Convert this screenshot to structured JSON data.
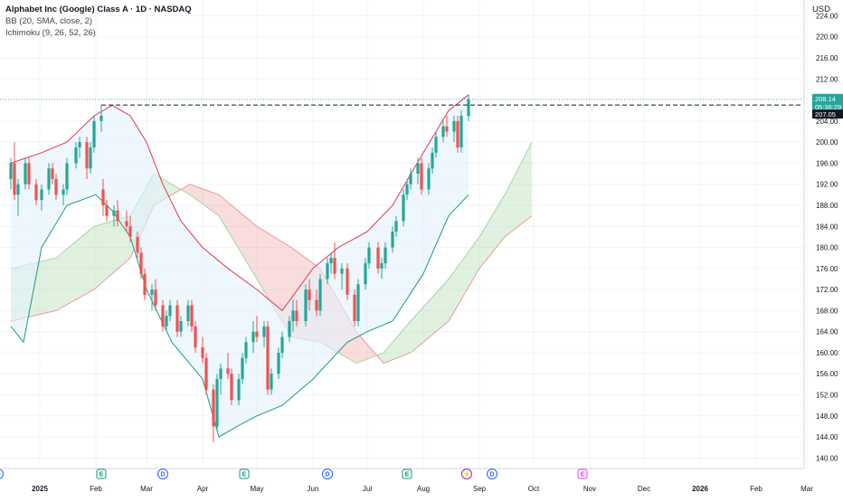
{
  "header": {
    "symbol_title": "Alphabet Inc (Google) Class A · 1D · NASDAQ",
    "indicator_bb": "BB (20, SMA, close, 2)",
    "indicator_ichimoku": "Ichimoku (9, 26, 52, 26)",
    "currency": "USD"
  },
  "colors": {
    "up": "#26a69a",
    "down": "#ef5350",
    "bb_upper": "#e0374f",
    "bb_lower": "#1f9b7e",
    "bb_fill": "#e3f2fd",
    "cloud_bull": "#a5d6a7",
    "cloud_bear": "#ef9a9a",
    "dividend": "#2962ff",
    "earnings": "#089981",
    "earnings_future": "#e040fb",
    "split": "#9c27b0"
  },
  "chart_data": {
    "type": "candlestick",
    "ylim": [
      138,
      227
    ],
    "y_ticks": [
      140,
      144,
      148,
      152,
      156,
      160,
      164,
      168,
      172,
      176,
      180,
      184,
      188,
      192,
      196,
      200,
      204,
      208,
      212,
      216,
      220,
      224
    ],
    "x_labels": [
      {
        "label": "2025",
        "date": "2025-01-01",
        "bold": true
      },
      {
        "label": "Feb",
        "date": "2025-02-01"
      },
      {
        "label": "Mar",
        "date": "2025-03-01"
      },
      {
        "label": "Apr",
        "date": "2025-04-01"
      },
      {
        "label": "May",
        "date": "2025-05-01"
      },
      {
        "label": "Jun",
        "date": "2025-06-01"
      },
      {
        "label": "Jul",
        "date": "2025-07-01"
      },
      {
        "label": "Aug",
        "date": "2025-08-01"
      },
      {
        "label": "Sep",
        "date": "2025-09-01"
      },
      {
        "label": "Oct",
        "date": "2025-10-01"
      },
      {
        "label": "Nov",
        "date": "2025-11-01"
      },
      {
        "label": "Dec",
        "date": "2025-12-01"
      },
      {
        "label": "2026",
        "date": "2026-01-01",
        "bold": true
      },
      {
        "label": "Feb",
        "date": "2026-02-01"
      },
      {
        "label": "Mar",
        "date": "2026-03-01"
      }
    ],
    "last_price": 208.14,
    "countdown": "05:36:29",
    "line_price": 207.05,
    "resistance_level": 207.05,
    "resistance_from": "2025-02-04",
    "candles": [
      {
        "date": "2024-12-16",
        "o": 193,
        "h": 197,
        "l": 191,
        "c": 196
      },
      {
        "date": "2024-12-18",
        "o": 196,
        "h": 200,
        "l": 189,
        "c": 190
      },
      {
        "date": "2024-12-20",
        "o": 190,
        "h": 193,
        "l": 186,
        "c": 192
      },
      {
        "date": "2024-12-24",
        "o": 192,
        "h": 197,
        "l": 191,
        "c": 196
      },
      {
        "date": "2024-12-26",
        "o": 196,
        "h": 197,
        "l": 191,
        "c": 192
      },
      {
        "date": "2024-12-30",
        "o": 192,
        "h": 193,
        "l": 188,
        "c": 189
      },
      {
        "date": "2025-01-02",
        "o": 189,
        "h": 192,
        "l": 187,
        "c": 191
      },
      {
        "date": "2025-01-06",
        "o": 191,
        "h": 196,
        "l": 190,
        "c": 195
      },
      {
        "date": "2025-01-08",
        "o": 195,
        "h": 196,
        "l": 192,
        "c": 193
      },
      {
        "date": "2025-01-10",
        "o": 193,
        "h": 194,
        "l": 189,
        "c": 190
      },
      {
        "date": "2025-01-14",
        "o": 190,
        "h": 192,
        "l": 188,
        "c": 191
      },
      {
        "date": "2025-01-16",
        "o": 191,
        "h": 197,
        "l": 190,
        "c": 196
      },
      {
        "date": "2025-01-21",
        "o": 196,
        "h": 200,
        "l": 195,
        "c": 199
      },
      {
        "date": "2025-01-23",
        "o": 199,
        "h": 201,
        "l": 197,
        "c": 200
      },
      {
        "date": "2025-01-27",
        "o": 200,
        "h": 201,
        "l": 193,
        "c": 195
      },
      {
        "date": "2025-01-29",
        "o": 195,
        "h": 200,
        "l": 194,
        "c": 199
      },
      {
        "date": "2025-01-31",
        "o": 199,
        "h": 205,
        "l": 198,
        "c": 204
      },
      {
        "date": "2025-02-04",
        "o": 204,
        "h": 207,
        "l": 202,
        "c": 205
      },
      {
        "date": "2025-02-05",
        "o": 191,
        "h": 193,
        "l": 186,
        "c": 188
      },
      {
        "date": "2025-02-07",
        "o": 188,
        "h": 189,
        "l": 185,
        "c": 186
      },
      {
        "date": "2025-02-11",
        "o": 186,
        "h": 188,
        "l": 184,
        "c": 187
      },
      {
        "date": "2025-02-13",
        "o": 187,
        "h": 189,
        "l": 184,
        "c": 185
      },
      {
        "date": "2025-02-18",
        "o": 185,
        "h": 187,
        "l": 183,
        "c": 184
      },
      {
        "date": "2025-02-20",
        "o": 184,
        "h": 186,
        "l": 181,
        "c": 182
      },
      {
        "date": "2025-02-24",
        "o": 182,
        "h": 183,
        "l": 178,
        "c": 179
      },
      {
        "date": "2025-02-26",
        "o": 179,
        "h": 180,
        "l": 174,
        "c": 175
      },
      {
        "date": "2025-02-28",
        "o": 175,
        "h": 176,
        "l": 170,
        "c": 171
      },
      {
        "date": "2025-03-04",
        "o": 171,
        "h": 173,
        "l": 168,
        "c": 172
      },
      {
        "date": "2025-03-06",
        "o": 172,
        "h": 174,
        "l": 168,
        "c": 169
      },
      {
        "date": "2025-03-10",
        "o": 169,
        "h": 170,
        "l": 164,
        "c": 165
      },
      {
        "date": "2025-03-12",
        "o": 165,
        "h": 168,
        "l": 164,
        "c": 167
      },
      {
        "date": "2025-03-14",
        "o": 167,
        "h": 170,
        "l": 166,
        "c": 169
      },
      {
        "date": "2025-03-18",
        "o": 169,
        "h": 170,
        "l": 163,
        "c": 164
      },
      {
        "date": "2025-03-20",
        "o": 164,
        "h": 167,
        "l": 163,
        "c": 166
      },
      {
        "date": "2025-03-24",
        "o": 166,
        "h": 170,
        "l": 165,
        "c": 169
      },
      {
        "date": "2025-03-26",
        "o": 169,
        "h": 170,
        "l": 164,
        "c": 165
      },
      {
        "date": "2025-03-28",
        "o": 165,
        "h": 166,
        "l": 160,
        "c": 161
      },
      {
        "date": "2025-04-01",
        "o": 161,
        "h": 163,
        "l": 158,
        "c": 159
      },
      {
        "date": "2025-04-03",
        "o": 159,
        "h": 160,
        "l": 152,
        "c": 153
      },
      {
        "date": "2025-04-07",
        "o": 153,
        "h": 154,
        "l": 143,
        "c": 146
      },
      {
        "date": "2025-04-09",
        "o": 146,
        "h": 156,
        "l": 145,
        "c": 155
      },
      {
        "date": "2025-04-11",
        "o": 155,
        "h": 158,
        "l": 152,
        "c": 157
      },
      {
        "date": "2025-04-15",
        "o": 157,
        "h": 160,
        "l": 155,
        "c": 156
      },
      {
        "date": "2025-04-17",
        "o": 156,
        "h": 157,
        "l": 150,
        "c": 151
      },
      {
        "date": "2025-04-21",
        "o": 151,
        "h": 156,
        "l": 150,
        "c": 155
      },
      {
        "date": "2025-04-23",
        "o": 155,
        "h": 160,
        "l": 154,
        "c": 159
      },
      {
        "date": "2025-04-25",
        "o": 159,
        "h": 163,
        "l": 158,
        "c": 162
      },
      {
        "date": "2025-04-29",
        "o": 162,
        "h": 166,
        "l": 160,
        "c": 164
      },
      {
        "date": "2025-05-01",
        "o": 164,
        "h": 167,
        "l": 162,
        "c": 163
      },
      {
        "date": "2025-05-05",
        "o": 163,
        "h": 166,
        "l": 161,
        "c": 165
      },
      {
        "date": "2025-05-07",
        "o": 165,
        "h": 166,
        "l": 152,
        "c": 153
      },
      {
        "date": "2025-05-09",
        "o": 153,
        "h": 157,
        "l": 152,
        "c": 156
      },
      {
        "date": "2025-05-13",
        "o": 156,
        "h": 161,
        "l": 155,
        "c": 160
      },
      {
        "date": "2025-05-15",
        "o": 160,
        "h": 164,
        "l": 159,
        "c": 163
      },
      {
        "date": "2025-05-19",
        "o": 163,
        "h": 167,
        "l": 162,
        "c": 166
      },
      {
        "date": "2025-05-21",
        "o": 166,
        "h": 170,
        "l": 164,
        "c": 168
      },
      {
        "date": "2025-05-23",
        "o": 168,
        "h": 170,
        "l": 165,
        "c": 166
      },
      {
        "date": "2025-05-28",
        "o": 166,
        "h": 173,
        "l": 165,
        "c": 172
      },
      {
        "date": "2025-05-30",
        "o": 172,
        "h": 174,
        "l": 168,
        "c": 170
      },
      {
        "date": "2025-06-03",
        "o": 170,
        "h": 172,
        "l": 167,
        "c": 168
      },
      {
        "date": "2025-06-05",
        "o": 168,
        "h": 175,
        "l": 167,
        "c": 174
      },
      {
        "date": "2025-06-09",
        "o": 174,
        "h": 178,
        "l": 173,
        "c": 177
      },
      {
        "date": "2025-06-11",
        "o": 177,
        "h": 179,
        "l": 175,
        "c": 178
      },
      {
        "date": "2025-06-13",
        "o": 178,
        "h": 181,
        "l": 174,
        "c": 175
      },
      {
        "date": "2025-06-17",
        "o": 175,
        "h": 177,
        "l": 172,
        "c": 176
      },
      {
        "date": "2025-06-20",
        "o": 176,
        "h": 177,
        "l": 170,
        "c": 171
      },
      {
        "date": "2025-06-24",
        "o": 171,
        "h": 172,
        "l": 165,
        "c": 166
      },
      {
        "date": "2025-06-26",
        "o": 166,
        "h": 174,
        "l": 165,
        "c": 173
      },
      {
        "date": "2025-06-30",
        "o": 173,
        "h": 178,
        "l": 172,
        "c": 177
      },
      {
        "date": "2025-07-02",
        "o": 177,
        "h": 181,
        "l": 176,
        "c": 180
      },
      {
        "date": "2025-07-07",
        "o": 180,
        "h": 181,
        "l": 175,
        "c": 176
      },
      {
        "date": "2025-07-09",
        "o": 176,
        "h": 178,
        "l": 174,
        "c": 177
      },
      {
        "date": "2025-07-11",
        "o": 177,
        "h": 181,
        "l": 176,
        "c": 180
      },
      {
        "date": "2025-07-15",
        "o": 180,
        "h": 184,
        "l": 179,
        "c": 183
      },
      {
        "date": "2025-07-17",
        "o": 183,
        "h": 186,
        "l": 182,
        "c": 185
      },
      {
        "date": "2025-07-21",
        "o": 185,
        "h": 191,
        "l": 184,
        "c": 190
      },
      {
        "date": "2025-07-23",
        "o": 190,
        "h": 193,
        "l": 189,
        "c": 192
      },
      {
        "date": "2025-07-25",
        "o": 192,
        "h": 195,
        "l": 191,
        "c": 194
      },
      {
        "date": "2025-07-29",
        "o": 194,
        "h": 197,
        "l": 192,
        "c": 196
      },
      {
        "date": "2025-07-31",
        "o": 196,
        "h": 197,
        "l": 190,
        "c": 191
      },
      {
        "date": "2025-08-04",
        "o": 191,
        "h": 196,
        "l": 190,
        "c": 195
      },
      {
        "date": "2025-08-06",
        "o": 195,
        "h": 199,
        "l": 194,
        "c": 198
      },
      {
        "date": "2025-08-08",
        "o": 198,
        "h": 202,
        "l": 197,
        "c": 201
      },
      {
        "date": "2025-08-12",
        "o": 201,
        "h": 204,
        "l": 200,
        "c": 203
      },
      {
        "date": "2025-08-14",
        "o": 203,
        "h": 205,
        "l": 201,
        "c": 202
      },
      {
        "date": "2025-08-18",
        "o": 202,
        "h": 205,
        "l": 200,
        "c": 204
      },
      {
        "date": "2025-08-20",
        "o": 204,
        "h": 205,
        "l": 198,
        "c": 199
      },
      {
        "date": "2025-08-22",
        "o": 199,
        "h": 206,
        "l": 198,
        "c": 205
      },
      {
        "date": "2025-08-26",
        "o": 205,
        "h": 209,
        "l": 204,
        "c": 208.14
      }
    ],
    "bb_upper": [
      {
        "date": "2024-12-16",
        "v": 196
      },
      {
        "date": "2025-01-02",
        "v": 198
      },
      {
        "date": "2025-01-16",
        "v": 200
      },
      {
        "date": "2025-01-31",
        "v": 205
      },
      {
        "date": "2025-02-10",
        "v": 207
      },
      {
        "date": "2025-02-20",
        "v": 205
      },
      {
        "date": "2025-03-01",
        "v": 200
      },
      {
        "date": "2025-03-10",
        "v": 192
      },
      {
        "date": "2025-03-20",
        "v": 185
      },
      {
        "date": "2025-04-01",
        "v": 180
      },
      {
        "date": "2025-04-15",
        "v": 176
      },
      {
        "date": "2025-05-01",
        "v": 172
      },
      {
        "date": "2025-05-15",
        "v": 168
      },
      {
        "date": "2025-06-01",
        "v": 176
      },
      {
        "date": "2025-06-15",
        "v": 180
      },
      {
        "date": "2025-07-01",
        "v": 183
      },
      {
        "date": "2025-07-15",
        "v": 188
      },
      {
        "date": "2025-08-01",
        "v": 198
      },
      {
        "date": "2025-08-15",
        "v": 206
      },
      {
        "date": "2025-08-26",
        "v": 209
      }
    ],
    "bb_lower": [
      {
        "date": "2024-12-16",
        "v": 165
      },
      {
        "date": "2024-12-23",
        "v": 162
      },
      {
        "date": "2025-01-02",
        "v": 180
      },
      {
        "date": "2025-01-16",
        "v": 188
      },
      {
        "date": "2025-02-01",
        "v": 190
      },
      {
        "date": "2025-02-10",
        "v": 187
      },
      {
        "date": "2025-02-20",
        "v": 182
      },
      {
        "date": "2025-03-01",
        "v": 172
      },
      {
        "date": "2025-03-15",
        "v": 162
      },
      {
        "date": "2025-04-01",
        "v": 155
      },
      {
        "date": "2025-04-10",
        "v": 144
      },
      {
        "date": "2025-04-20",
        "v": 146
      },
      {
        "date": "2025-05-01",
        "v": 148
      },
      {
        "date": "2025-05-15",
        "v": 150
      },
      {
        "date": "2025-06-01",
        "v": 155
      },
      {
        "date": "2025-06-20",
        "v": 162
      },
      {
        "date": "2025-07-01",
        "v": 164
      },
      {
        "date": "2025-07-15",
        "v": 166
      },
      {
        "date": "2025-08-01",
        "v": 175
      },
      {
        "date": "2025-08-15",
        "v": 186
      },
      {
        "date": "2025-08-26",
        "v": 190
      }
    ],
    "cloud_a": [
      {
        "date": "2024-12-16",
        "v": 176
      },
      {
        "date": "2025-01-10",
        "v": 178
      },
      {
        "date": "2025-01-31",
        "v": 184
      },
      {
        "date": "2025-02-20",
        "v": 186
      },
      {
        "date": "2025-03-05",
        "v": 194
      },
      {
        "date": "2025-03-25",
        "v": 190
      },
      {
        "date": "2025-04-10",
        "v": 186
      },
      {
        "date": "2025-05-01",
        "v": 174
      },
      {
        "date": "2025-05-20",
        "v": 163
      },
      {
        "date": "2025-06-05",
        "v": 162
      },
      {
        "date": "2025-06-25",
        "v": 158
      },
      {
        "date": "2025-07-10",
        "v": 160
      },
      {
        "date": "2025-07-25",
        "v": 166
      },
      {
        "date": "2025-08-15",
        "v": 174
      },
      {
        "date": "2025-09-01",
        "v": 182
      },
      {
        "date": "2025-09-15",
        "v": 190
      },
      {
        "date": "2025-09-30",
        "v": 200
      }
    ],
    "cloud_b": [
      {
        "date": "2024-12-16",
        "v": 166
      },
      {
        "date": "2025-01-10",
        "v": 168
      },
      {
        "date": "2025-01-31",
        "v": 172
      },
      {
        "date": "2025-02-20",
        "v": 178
      },
      {
        "date": "2025-03-05",
        "v": 188
      },
      {
        "date": "2025-03-25",
        "v": 192
      },
      {
        "date": "2025-04-10",
        "v": 190
      },
      {
        "date": "2025-05-01",
        "v": 184
      },
      {
        "date": "2025-05-20",
        "v": 180
      },
      {
        "date": "2025-06-05",
        "v": 176
      },
      {
        "date": "2025-06-25",
        "v": 164
      },
      {
        "date": "2025-07-10",
        "v": 158
      },
      {
        "date": "2025-07-25",
        "v": 160
      },
      {
        "date": "2025-08-15",
        "v": 166
      },
      {
        "date": "2025-09-01",
        "v": 176
      },
      {
        "date": "2025-09-15",
        "v": 182
      },
      {
        "date": "2025-09-30",
        "v": 186
      }
    ],
    "events": [
      {
        "type": "dividend",
        "letter": "D",
        "date": "2024-12-09"
      },
      {
        "type": "earnings",
        "letter": "E",
        "date": "2025-02-04"
      },
      {
        "type": "dividend",
        "letter": "D",
        "date": "2025-03-10"
      },
      {
        "type": "earnings",
        "letter": "E",
        "date": "2025-04-24"
      },
      {
        "type": "dividend",
        "letter": "D",
        "date": "2025-06-09"
      },
      {
        "type": "earnings",
        "letter": "E",
        "date": "2025-07-23"
      },
      {
        "type": "split",
        "letter": "⚡",
        "date": "2025-08-25"
      },
      {
        "type": "dividend",
        "letter": "D",
        "date": "2025-09-08"
      },
      {
        "type": "earnings_future",
        "letter": "E",
        "date": "2025-10-28"
      }
    ]
  }
}
